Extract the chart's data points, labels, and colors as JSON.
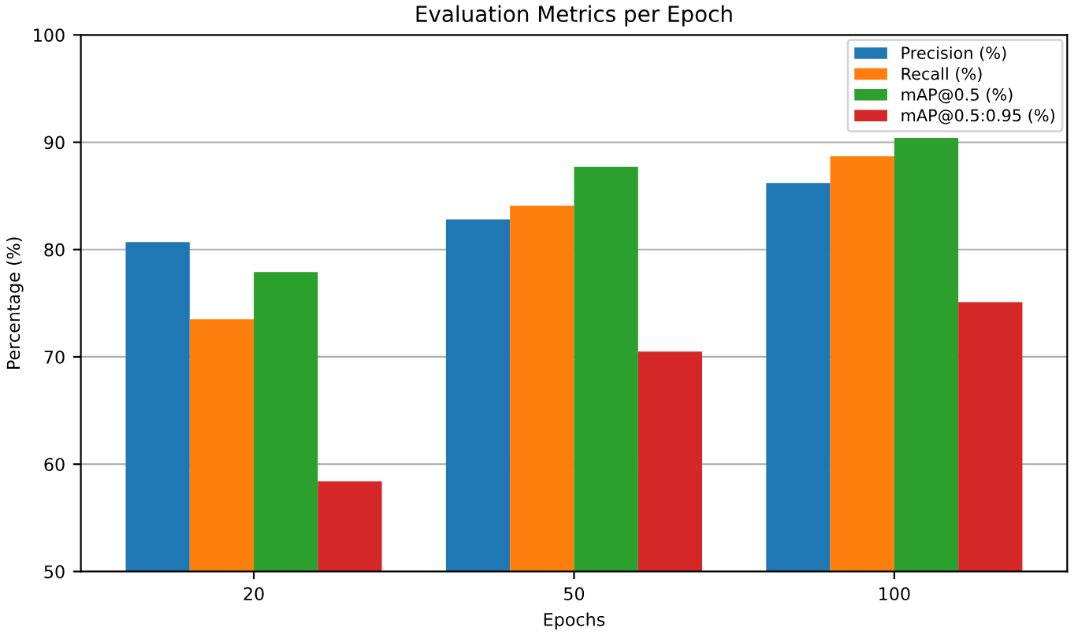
{
  "chart_data": {
    "type": "bar",
    "title": "Evaluation Metrics per Epoch",
    "xlabel": "Epochs",
    "ylabel": "Percentage (%)",
    "categories": [
      "20",
      "50",
      "100"
    ],
    "series": [
      {
        "name": "Precision (%)",
        "color": "#1f77b4",
        "values": [
          80.7,
          82.8,
          86.2
        ]
      },
      {
        "name": "Recall (%)",
        "color": "#ff7f0e",
        "values": [
          73.5,
          84.1,
          88.7
        ]
      },
      {
        "name": "mAP@0.5 (%)",
        "color": "#2ca02c",
        "values": [
          77.9,
          87.7,
          90.4
        ]
      },
      {
        "name": "mAP@0.5:0.95 (%)",
        "color": "#d62728",
        "values": [
          58.4,
          70.5,
          75.1
        ]
      }
    ],
    "ylim": [
      50,
      100
    ],
    "yticks": [
      50,
      60,
      70,
      80,
      90,
      100
    ],
    "grid": "y",
    "legend": "top right"
  }
}
